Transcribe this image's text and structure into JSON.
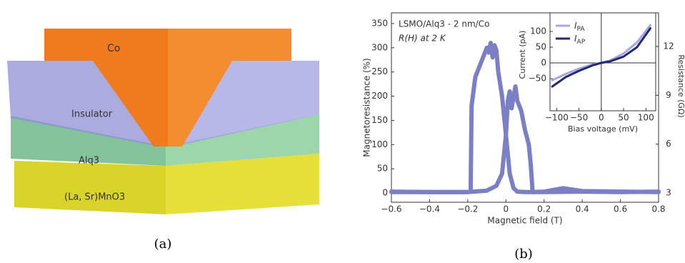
{
  "figure_a": {
    "labels": [
      "Co",
      "Insulator",
      "Alq3",
      "(La, Sr)MnO3"
    ],
    "caption": "(a)"
  },
  "caption_b": "(b)",
  "chart_data": [
    {
      "type": "line",
      "annotation": [
        "LSMO/Alq3 - 2 nm/Co",
        "R(H) at 2 K"
      ],
      "x_label": "Magnetic field (T)",
      "y_label": "Magnetoresistance (%)",
      "y2_label": "Resistance (GΩ)",
      "xlim": [
        -0.6,
        0.8
      ],
      "xticks": [
        {
          "value": -0.6,
          "label": "−0.6"
        },
        {
          "value": -0.4,
          "label": "−0.4"
        },
        {
          "value": -0.2,
          "label": "−0.2"
        },
        0,
        0.2,
        0.4,
        0.6,
        0.8
      ],
      "ylim": [
        -19,
        372
      ],
      "yticks": [
        0,
        50,
        100,
        150,
        200,
        250,
        300,
        350
      ],
      "y2lim": [
        2.43,
        14.06
      ],
      "y2ticks": [
        3,
        6,
        9,
        12
      ],
      "series": [
        {
          "color": "#7b7fc4",
          "x": [
            -0.6,
            -0.4,
            -0.2,
            -0.185,
            -0.18,
            -0.16,
            -0.13,
            -0.1,
            -0.09,
            -0.08,
            -0.07,
            -0.06,
            -0.05,
            -0.04,
            -0.02,
            0,
            0.02,
            0.04,
            0.06,
            0.1,
            0.2,
            0.4,
            0.6,
            0.8
          ],
          "values": [
            3,
            2,
            2,
            3,
            180,
            240,
            270,
            300,
            290,
            310,
            280,
            305,
            295,
            250,
            200,
            120,
            40,
            10,
            3,
            2,
            2,
            3,
            2,
            3
          ]
        },
        {
          "color": "#7b7fc4",
          "x": [
            -0.6,
            -0.4,
            -0.2,
            -0.1,
            -0.05,
            -0.02,
            0,
            0.01,
            0.02,
            0.03,
            0.04,
            0.05,
            0.06,
            0.08,
            0.1,
            0.12,
            0.13,
            0.14,
            0.2,
            0.3,
            0.4,
            0.6,
            0.8
          ],
          "values": [
            2,
            2,
            2,
            5,
            15,
            40,
            120,
            190,
            210,
            175,
            200,
            220,
            190,
            170,
            130,
            100,
            60,
            2,
            3,
            10,
            4,
            3,
            2
          ]
        }
      ]
    },
    {
      "type": "line",
      "x_label": "Bias voltage (mV)",
      "y_label": "Current (pA)",
      "xlim": [
        -115,
        122
      ],
      "xticks": [
        {
          "value": -100,
          "label": "−100"
        },
        {
          "value": -50,
          "label": "−50"
        },
        0,
        50,
        100
      ],
      "ylim": [
        -152,
        159
      ],
      "yticks": [
        {
          "value": -50,
          "label": "−50"
        },
        0,
        50,
        100
      ],
      "series": [
        {
          "name": "IPA",
          "color": "#a9a6df",
          "x": [
            -110,
            -80,
            -50,
            -20,
            0,
            20,
            50,
            80,
            110
          ],
          "values": [
            -55,
            -35,
            -18,
            -5,
            0,
            8,
            30,
            65,
            120
          ]
        },
        {
          "name": "IAP",
          "color": "#1f2a72",
          "x": [
            -110,
            -80,
            -50,
            -20,
            0,
            20,
            50,
            80,
            110
          ],
          "values": [
            -75,
            -45,
            -25,
            -8,
            0,
            5,
            20,
            50,
            110
          ]
        }
      ]
    }
  ]
}
